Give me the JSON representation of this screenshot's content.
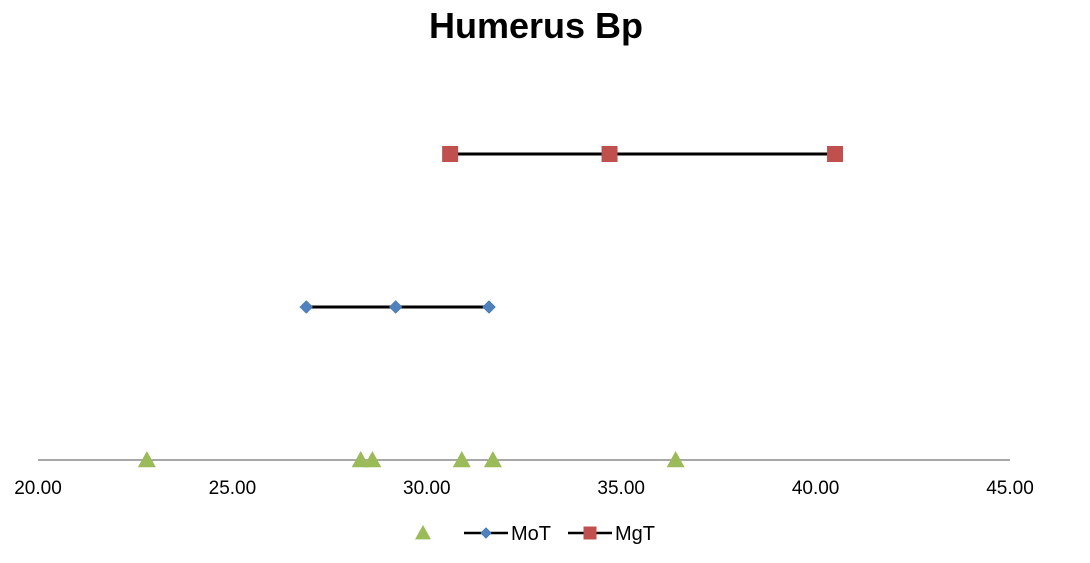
{
  "chart_data": {
    "type": "scatter",
    "title": "Humerus Bp",
    "xlabel": "",
    "ylabel": "",
    "xlim": [
      20,
      45
    ],
    "x_ticks": [
      "20.00",
      "25.00",
      "30.00",
      "35.00",
      "40.00",
      "45.00"
    ],
    "grid": false,
    "legend_position": "bottom",
    "series": [
      {
        "marker": "triangle",
        "color": "#9BBB59",
        "line": false,
        "level": 0,
        "x": [
          22.8,
          28.3,
          28.6,
          30.9,
          31.7,
          36.4
        ]
      },
      {
        "name": "MoT",
        "marker": "diamond",
        "color": "#4F81BD",
        "line": true,
        "line_color": "#000000",
        "level": 1,
        "x": [
          26.9,
          29.2,
          31.6
        ]
      },
      {
        "name": "MgT",
        "marker": "square",
        "color": "#C0504D",
        "line": true,
        "line_color": "#000000",
        "level": 2,
        "x": [
          30.6,
          34.7,
          40.5
        ]
      }
    ]
  }
}
